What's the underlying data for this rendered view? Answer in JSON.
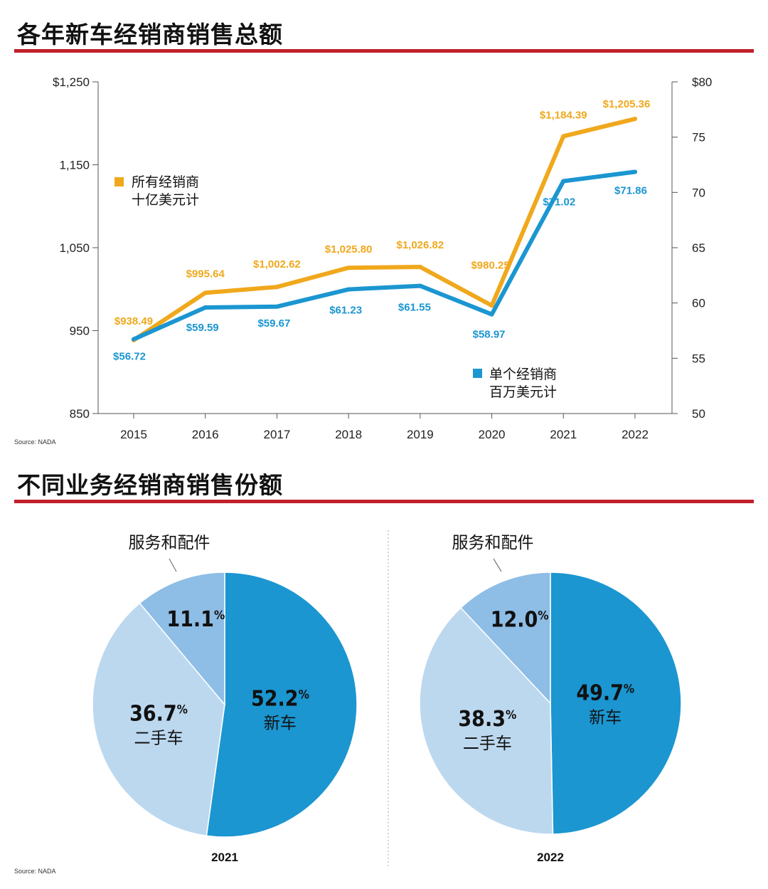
{
  "sections": {
    "line_title": "各年新车经销商销售总额",
    "pie_title": "不同业务经销商销售份额",
    "source_1": "Source: NADA",
    "source_2": "Source: NADA"
  },
  "colors": {
    "accent_rule": "#c0202c",
    "series_all": "#f0a81c",
    "series_single": "#1b96d1",
    "pie_new": "#1b96d1",
    "pie_used": "#bcd8ef",
    "pie_service": "#8ebde6"
  },
  "chart_data": [
    {
      "type": "line",
      "x": [
        "2015",
        "2016",
        "2017",
        "2018",
        "2019",
        "2020",
        "2021",
        "2022"
      ],
      "left_axis": {
        "ticks": [
          "$1,250",
          "1,150",
          "1,050",
          "950",
          "850"
        ],
        "ylim": [
          850,
          1250
        ]
      },
      "right_axis": {
        "ticks": [
          "$80",
          "75",
          "70",
          "65",
          "60",
          "55",
          "50"
        ],
        "ylim": [
          50,
          80
        ]
      },
      "series": [
        {
          "name_line1": "所有经销商",
          "name_line2": "十亿美元计",
          "axis": "left",
          "color": "#f0a81c",
          "values": [
            938.49,
            995.64,
            1002.62,
            1025.8,
            1026.82,
            980.25,
            1184.39,
            1205.36
          ],
          "labels": [
            "$938.49",
            "$995.64",
            "$1,002.62",
            "$1,025.80",
            "$1,026.82",
            "$980.25",
            "$1,184.39",
            "$1,205.36"
          ]
        },
        {
          "name_line1": "单个经销商",
          "name_line2": "百万美元计",
          "axis": "right",
          "color": "#1b96d1",
          "values": [
            56.72,
            59.59,
            59.67,
            61.23,
            61.55,
            58.97,
            71.02,
            71.86
          ],
          "labels": [
            "$56.72",
            "$59.59",
            "$59.67",
            "$61.23",
            "$61.55",
            "$58.97",
            "$71.02",
            "$71.86"
          ]
        }
      ]
    },
    {
      "type": "pie",
      "year": "2021",
      "slices": [
        {
          "label": "新车",
          "value": 52.2,
          "pct": "52.2",
          "color": "#1b96d1"
        },
        {
          "label": "二手车",
          "value": 36.7,
          "pct": "36.7",
          "color": "#bcd8ef"
        },
        {
          "label": "服务和配件",
          "value": 11.1,
          "pct": "11.1",
          "color": "#8ebde6"
        }
      ]
    },
    {
      "type": "pie",
      "year": "2022",
      "slices": [
        {
          "label": "新车",
          "value": 49.7,
          "pct": "49.7",
          "color": "#1b96d1"
        },
        {
          "label": "二手车",
          "value": 38.3,
          "pct": "38.3",
          "color": "#bcd8ef"
        },
        {
          "label": "服务和配件",
          "value": 12.0,
          "pct": "12.0",
          "color": "#8ebde6"
        }
      ]
    }
  ]
}
